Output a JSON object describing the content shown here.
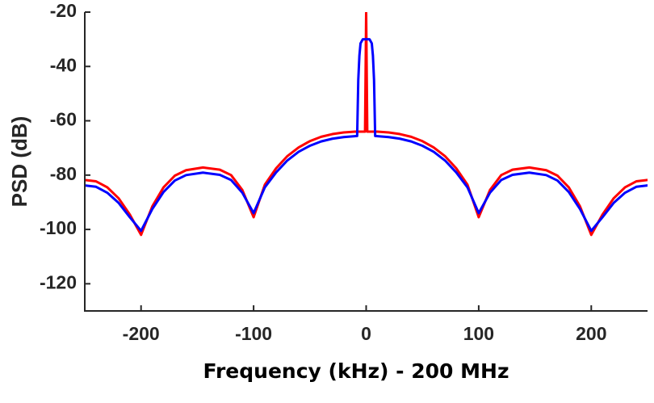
{
  "chart_data": {
    "type": "line",
    "title": "",
    "xlabel": "Frequency (kHz) - 200 MHz",
    "ylabel": "PSD (dB)",
    "xlim": [
      -250,
      250
    ],
    "ylim": [
      -130,
      -20
    ],
    "xticks": [
      -200,
      -100,
      0,
      100,
      200
    ],
    "yticks": [
      -20,
      -40,
      -60,
      -80,
      -100,
      -120
    ],
    "grid": false,
    "legend": "none",
    "series": [
      {
        "color": "#ff0000",
        "line_width": 3,
        "points": [
          [
            -250,
            -81.8
          ],
          [
            -240,
            -82.3
          ],
          [
            -230,
            -84.5
          ],
          [
            -220,
            -88.5
          ],
          [
            -210,
            -94.5
          ],
          [
            -200,
            -102
          ],
          [
            -190,
            -91.5
          ],
          [
            -180,
            -84.5
          ],
          [
            -170,
            -80.2
          ],
          [
            -160,
            -78.2
          ],
          [
            -145,
            -77.2
          ],
          [
            -130,
            -78
          ],
          [
            -120,
            -80
          ],
          [
            -110,
            -85.5
          ],
          [
            -100,
            -95.5
          ],
          [
            -90,
            -83.5
          ],
          [
            -80,
            -77.5
          ],
          [
            -70,
            -73
          ],
          [
            -60,
            -69.8
          ],
          [
            -50,
            -67.5
          ],
          [
            -40,
            -65.9
          ],
          [
            -30,
            -64.9
          ],
          [
            -20,
            -64.3
          ],
          [
            -10,
            -64
          ],
          [
            -1,
            -64
          ],
          [
            0,
            -20
          ],
          [
            1,
            -64
          ],
          [
            10,
            -64
          ],
          [
            20,
            -64.3
          ],
          [
            30,
            -64.9
          ],
          [
            40,
            -65.9
          ],
          [
            50,
            -67.5
          ],
          [
            60,
            -69.8
          ],
          [
            70,
            -73
          ],
          [
            80,
            -77.5
          ],
          [
            90,
            -83.5
          ],
          [
            100,
            -95.5
          ],
          [
            110,
            -85.5
          ],
          [
            120,
            -80
          ],
          [
            130,
            -78
          ],
          [
            145,
            -77.2
          ],
          [
            160,
            -78.2
          ],
          [
            170,
            -80.2
          ],
          [
            180,
            -84.5
          ],
          [
            190,
            -91.5
          ],
          [
            200,
            -102
          ],
          [
            210,
            -94.5
          ],
          [
            220,
            -88.5
          ],
          [
            230,
            -84.5
          ],
          [
            240,
            -82.3
          ],
          [
            250,
            -81.8
          ]
        ]
      },
      {
        "color": "#0000ff",
        "line_width": 3,
        "points": [
          [
            -250,
            -83.8
          ],
          [
            -240,
            -84.3
          ],
          [
            -230,
            -86.5
          ],
          [
            -220,
            -90.2
          ],
          [
            -210,
            -95.5
          ],
          [
            -200,
            -100.5
          ],
          [
            -190,
            -92.5
          ],
          [
            -180,
            -86.2
          ],
          [
            -170,
            -82
          ],
          [
            -160,
            -80
          ],
          [
            -145,
            -79.1
          ],
          [
            -130,
            -79.9
          ],
          [
            -120,
            -81.8
          ],
          [
            -110,
            -86.5
          ],
          [
            -100,
            -94
          ],
          [
            -90,
            -84.5
          ],
          [
            -80,
            -79
          ],
          [
            -70,
            -74.6
          ],
          [
            -60,
            -71.4
          ],
          [
            -50,
            -69.2
          ],
          [
            -40,
            -67.6
          ],
          [
            -30,
            -66.6
          ],
          [
            -20,
            -66
          ],
          [
            -8,
            -65.6
          ],
          [
            -7,
            -45
          ],
          [
            -6,
            -36
          ],
          [
            -5,
            -31.5
          ],
          [
            -3,
            -30
          ],
          [
            3,
            -30
          ],
          [
            5,
            -31.5
          ],
          [
            6,
            -36
          ],
          [
            7,
            -45
          ],
          [
            8,
            -65.6
          ],
          [
            20,
            -66
          ],
          [
            30,
            -66.6
          ],
          [
            40,
            -67.6
          ],
          [
            50,
            -69.2
          ],
          [
            60,
            -71.4
          ],
          [
            70,
            -74.6
          ],
          [
            80,
            -79
          ],
          [
            90,
            -84.5
          ],
          [
            100,
            -94
          ],
          [
            110,
            -86.5
          ],
          [
            120,
            -81.8
          ],
          [
            130,
            -79.9
          ],
          [
            145,
            -79.1
          ],
          [
            160,
            -80
          ],
          [
            170,
            -82
          ],
          [
            180,
            -86.2
          ],
          [
            190,
            -92.5
          ],
          [
            200,
            -100.5
          ],
          [
            210,
            -95.5
          ],
          [
            220,
            -90.2
          ],
          [
            230,
            -86.5
          ],
          [
            240,
            -84.3
          ],
          [
            250,
            -83.8
          ]
        ]
      }
    ]
  }
}
